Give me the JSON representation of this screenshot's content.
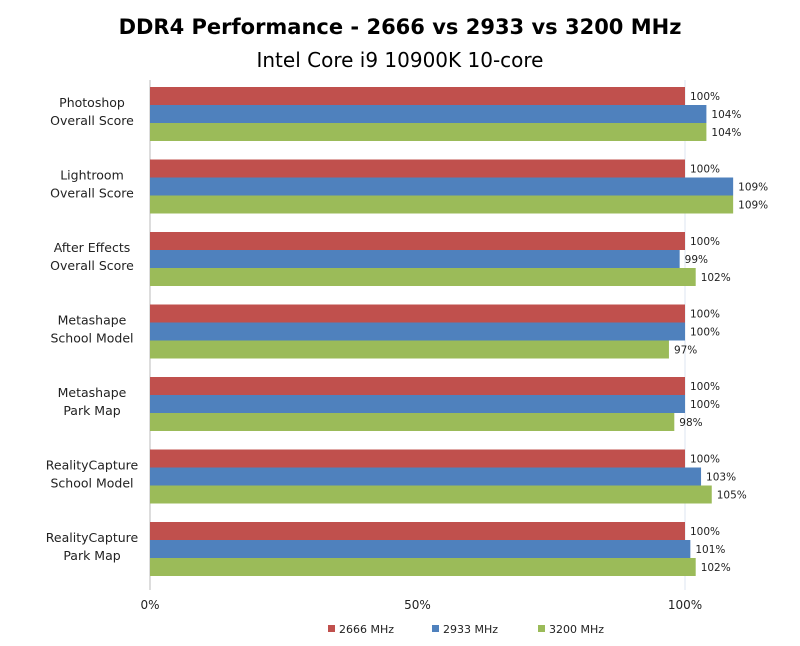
{
  "chart_data": {
    "type": "bar",
    "orientation": "horizontal",
    "title": "DDR4 Performance - 2666 vs 2933 vs 3200 MHz",
    "subtitle": "Intel Core i9 10900K 10-core",
    "categories": [
      [
        "Photoshop",
        "Overall Score"
      ],
      [
        "Lightroom",
        "Overall Score"
      ],
      [
        "After Effects",
        "Overall Score"
      ],
      [
        "Metashape",
        "School Model"
      ],
      [
        "Metashape",
        "Park Map"
      ],
      [
        "RealityCapture",
        "School Model"
      ],
      [
        "RealityCapture",
        "Park Map"
      ]
    ],
    "series": [
      {
        "name": "2666 MHz",
        "color": "#C0504D",
        "values": [
          100,
          100,
          100,
          100,
          100,
          100,
          100
        ]
      },
      {
        "name": "2933 MHz",
        "color": "#4F81BD",
        "values": [
          104,
          109,
          99,
          100,
          100,
          103,
          101
        ]
      },
      {
        "name": "3200 MHz",
        "color": "#9BBB59",
        "values": [
          104,
          109,
          102,
          97,
          98,
          105,
          102
        ]
      }
    ],
    "xlim": [
      0,
      110
    ],
    "xticks": [
      {
        "value": 0,
        "label": "0%"
      },
      {
        "value": 50,
        "label": "50%"
      },
      {
        "value": 100,
        "label": "100%"
      }
    ],
    "legend": "bottom",
    "grid": false
  }
}
